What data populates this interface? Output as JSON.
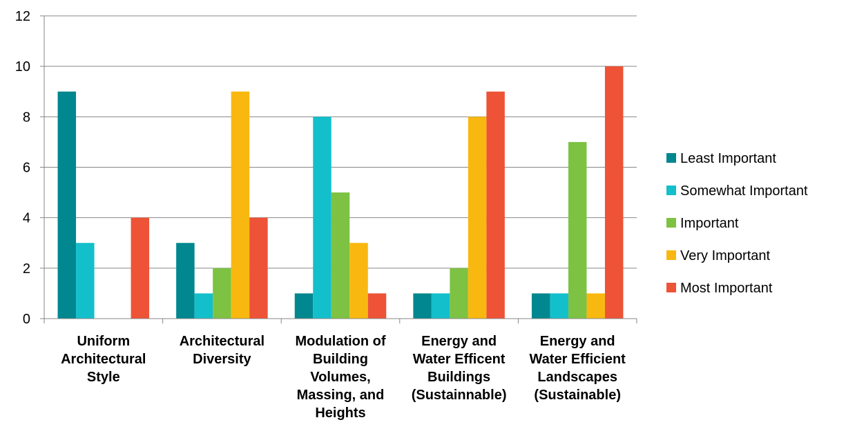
{
  "chart_data": {
    "type": "bar",
    "categories": [
      [
        "Uniform",
        "Architectural",
        "Style"
      ],
      [
        "Architectural",
        "Diversity"
      ],
      [
        "Modulation of",
        "Building",
        "Volumes,",
        "Massing, and",
        "Heights"
      ],
      [
        "Energy and",
        "Water Efficent",
        "Buildings",
        "(Sustainnable)"
      ],
      [
        "Energy and",
        "Water Efficient",
        "Landscapes",
        "(Sustainable)"
      ]
    ],
    "series": [
      {
        "name": "Least Important",
        "color": "#00878F",
        "values": [
          9,
          3,
          1,
          1,
          1
        ]
      },
      {
        "name": "Somewhat Important",
        "color": "#13BFCB",
        "values": [
          3,
          1,
          8,
          1,
          1
        ]
      },
      {
        "name": "Important",
        "color": "#7DC242",
        "values": [
          0,
          2,
          5,
          2,
          7
        ]
      },
      {
        "name": "Very Important",
        "color": "#F9B80F",
        "values": [
          0,
          9,
          3,
          8,
          1
        ]
      },
      {
        "name": "Most Important",
        "color": "#EE5337",
        "values": [
          4,
          4,
          1,
          9,
          10
        ]
      }
    ],
    "ylim": [
      0,
      12
    ],
    "yticks": [
      0,
      2,
      4,
      6,
      8,
      10,
      12
    ],
    "grid": true,
    "legend_position": "right"
  }
}
